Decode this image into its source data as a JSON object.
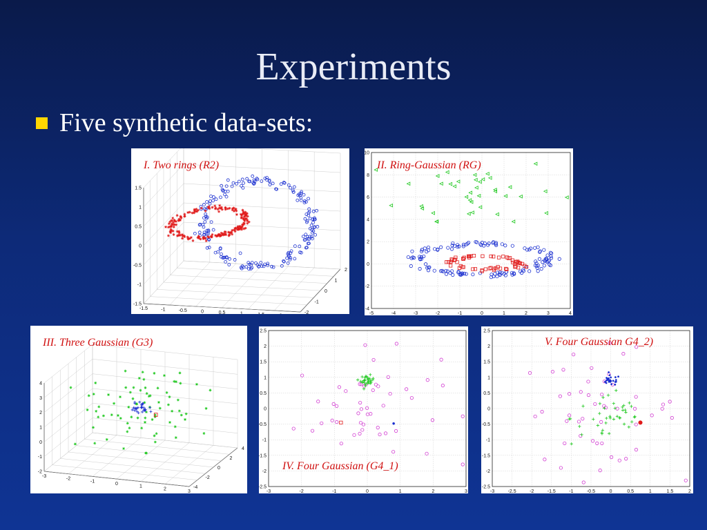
{
  "slide": {
    "title": "Experiments",
    "bullet": "Five synthetic data-sets:"
  },
  "colors": {
    "background": "#0d2a78",
    "bullet": "#ffd700",
    "caption": "#d01010",
    "blue": "#1a2fd0",
    "red": "#e01a1a",
    "green": "#1ec81e",
    "magenta": "#d23cd2"
  },
  "chart_data": [
    {
      "type": "scatter",
      "title": "I. Two rings (R2)",
      "projection": "3d",
      "x_ticks": [
        "-1.5",
        "-1",
        "-0.5",
        "0",
        "0.5",
        "1",
        "1.5",
        "2",
        "2.5"
      ],
      "y_ticks": [
        "-2",
        "-1",
        "0",
        "1",
        "2"
      ],
      "z_ticks": [
        "-1.5",
        "-1",
        "-0.5",
        "0",
        "0.5",
        "1",
        "1.5"
      ],
      "series": [
        {
          "marker": "circle",
          "color": "#1a2fd0",
          "count": 200
        },
        {
          "marker": "star",
          "color": "#e01a1a",
          "count": 200
        }
      ]
    },
    {
      "type": "scatter",
      "title": "II. Ring-Gaussian (RG)",
      "x_ticks": [
        "-5",
        "-4",
        "-3",
        "-2",
        "-1",
        "0",
        "1",
        "2",
        "3",
        "4"
      ],
      "y_ticks": [
        "-4",
        "-2",
        "0",
        "2",
        "4",
        "6",
        "8",
        "10"
      ],
      "xlim": [
        -5,
        4
      ],
      "ylim": [
        -4,
        10
      ],
      "series": [
        {
          "marker": "circle",
          "color": "#1a2fd0",
          "count": 140
        },
        {
          "marker": "square",
          "color": "#e01a1a",
          "count": 60
        },
        {
          "marker": "triangle",
          "color": "#1ec81e",
          "count": 40
        }
      ]
    },
    {
      "type": "scatter",
      "title": "III. Three Gaussian (G3)",
      "projection": "3d",
      "x_ticks": [
        "-3",
        "-2",
        "-1",
        "0",
        "1",
        "2",
        "3"
      ],
      "y_ticks": [
        "-4",
        "-2",
        "0",
        "2",
        "4"
      ],
      "z_ticks": [
        "-2",
        "-1",
        "0",
        "1",
        "2",
        "3",
        "4"
      ],
      "series": [
        {
          "marker": "star",
          "color": "#1ec81e",
          "count": 80
        },
        {
          "marker": "cross",
          "color": "#1a2fd0",
          "count": 30
        },
        {
          "marker": "square",
          "color": "#e01a1a",
          "count": 1
        }
      ]
    },
    {
      "type": "scatter",
      "title": "IV. Four Gaussian (G4_1)",
      "x_ticks": [
        "-3",
        "-2",
        "-1",
        "0",
        "1",
        "2",
        "3"
      ],
      "y_ticks": [
        "-2.5",
        "-2",
        "-1.5",
        "-1",
        "-0.5",
        "0",
        "0.5",
        "1",
        "1.5",
        "2",
        "2.5"
      ],
      "xlim": [
        -3,
        3
      ],
      "ylim": [
        -2.5,
        2.5
      ],
      "series": [
        {
          "marker": "circle",
          "color": "#d23cd2",
          "count": 50
        },
        {
          "marker": "cross",
          "color": "#1ec81e",
          "count": 30
        },
        {
          "marker": "square",
          "color": "#e01a1a",
          "count": 1
        },
        {
          "marker": "dot",
          "color": "#1a2fd0",
          "count": 1
        }
      ]
    },
    {
      "type": "scatter",
      "title": "V. Four Gaussian G4_2)",
      "x_ticks": [
        "-3",
        "-2.5",
        "-2",
        "-1.5",
        "-1",
        "-0.5",
        "0",
        "0.5",
        "1",
        "1.5",
        "2"
      ],
      "y_ticks": [
        "-2.5",
        "-2",
        "-1.5",
        "-1",
        "-0.5",
        "0",
        "0.5",
        "1",
        "1.5",
        "2",
        "2.5"
      ],
      "xlim": [
        -3,
        2
      ],
      "ylim": [
        -2.5,
        2.5
      ],
      "series": [
        {
          "marker": "circle",
          "color": "#d23cd2",
          "count": 50
        },
        {
          "marker": "cross",
          "color": "#1ec81e",
          "count": 40
        },
        {
          "marker": "dot",
          "color": "#1a2fd0",
          "count": 25
        },
        {
          "marker": "dot",
          "color": "#e01a1a",
          "count": 1
        }
      ]
    }
  ]
}
